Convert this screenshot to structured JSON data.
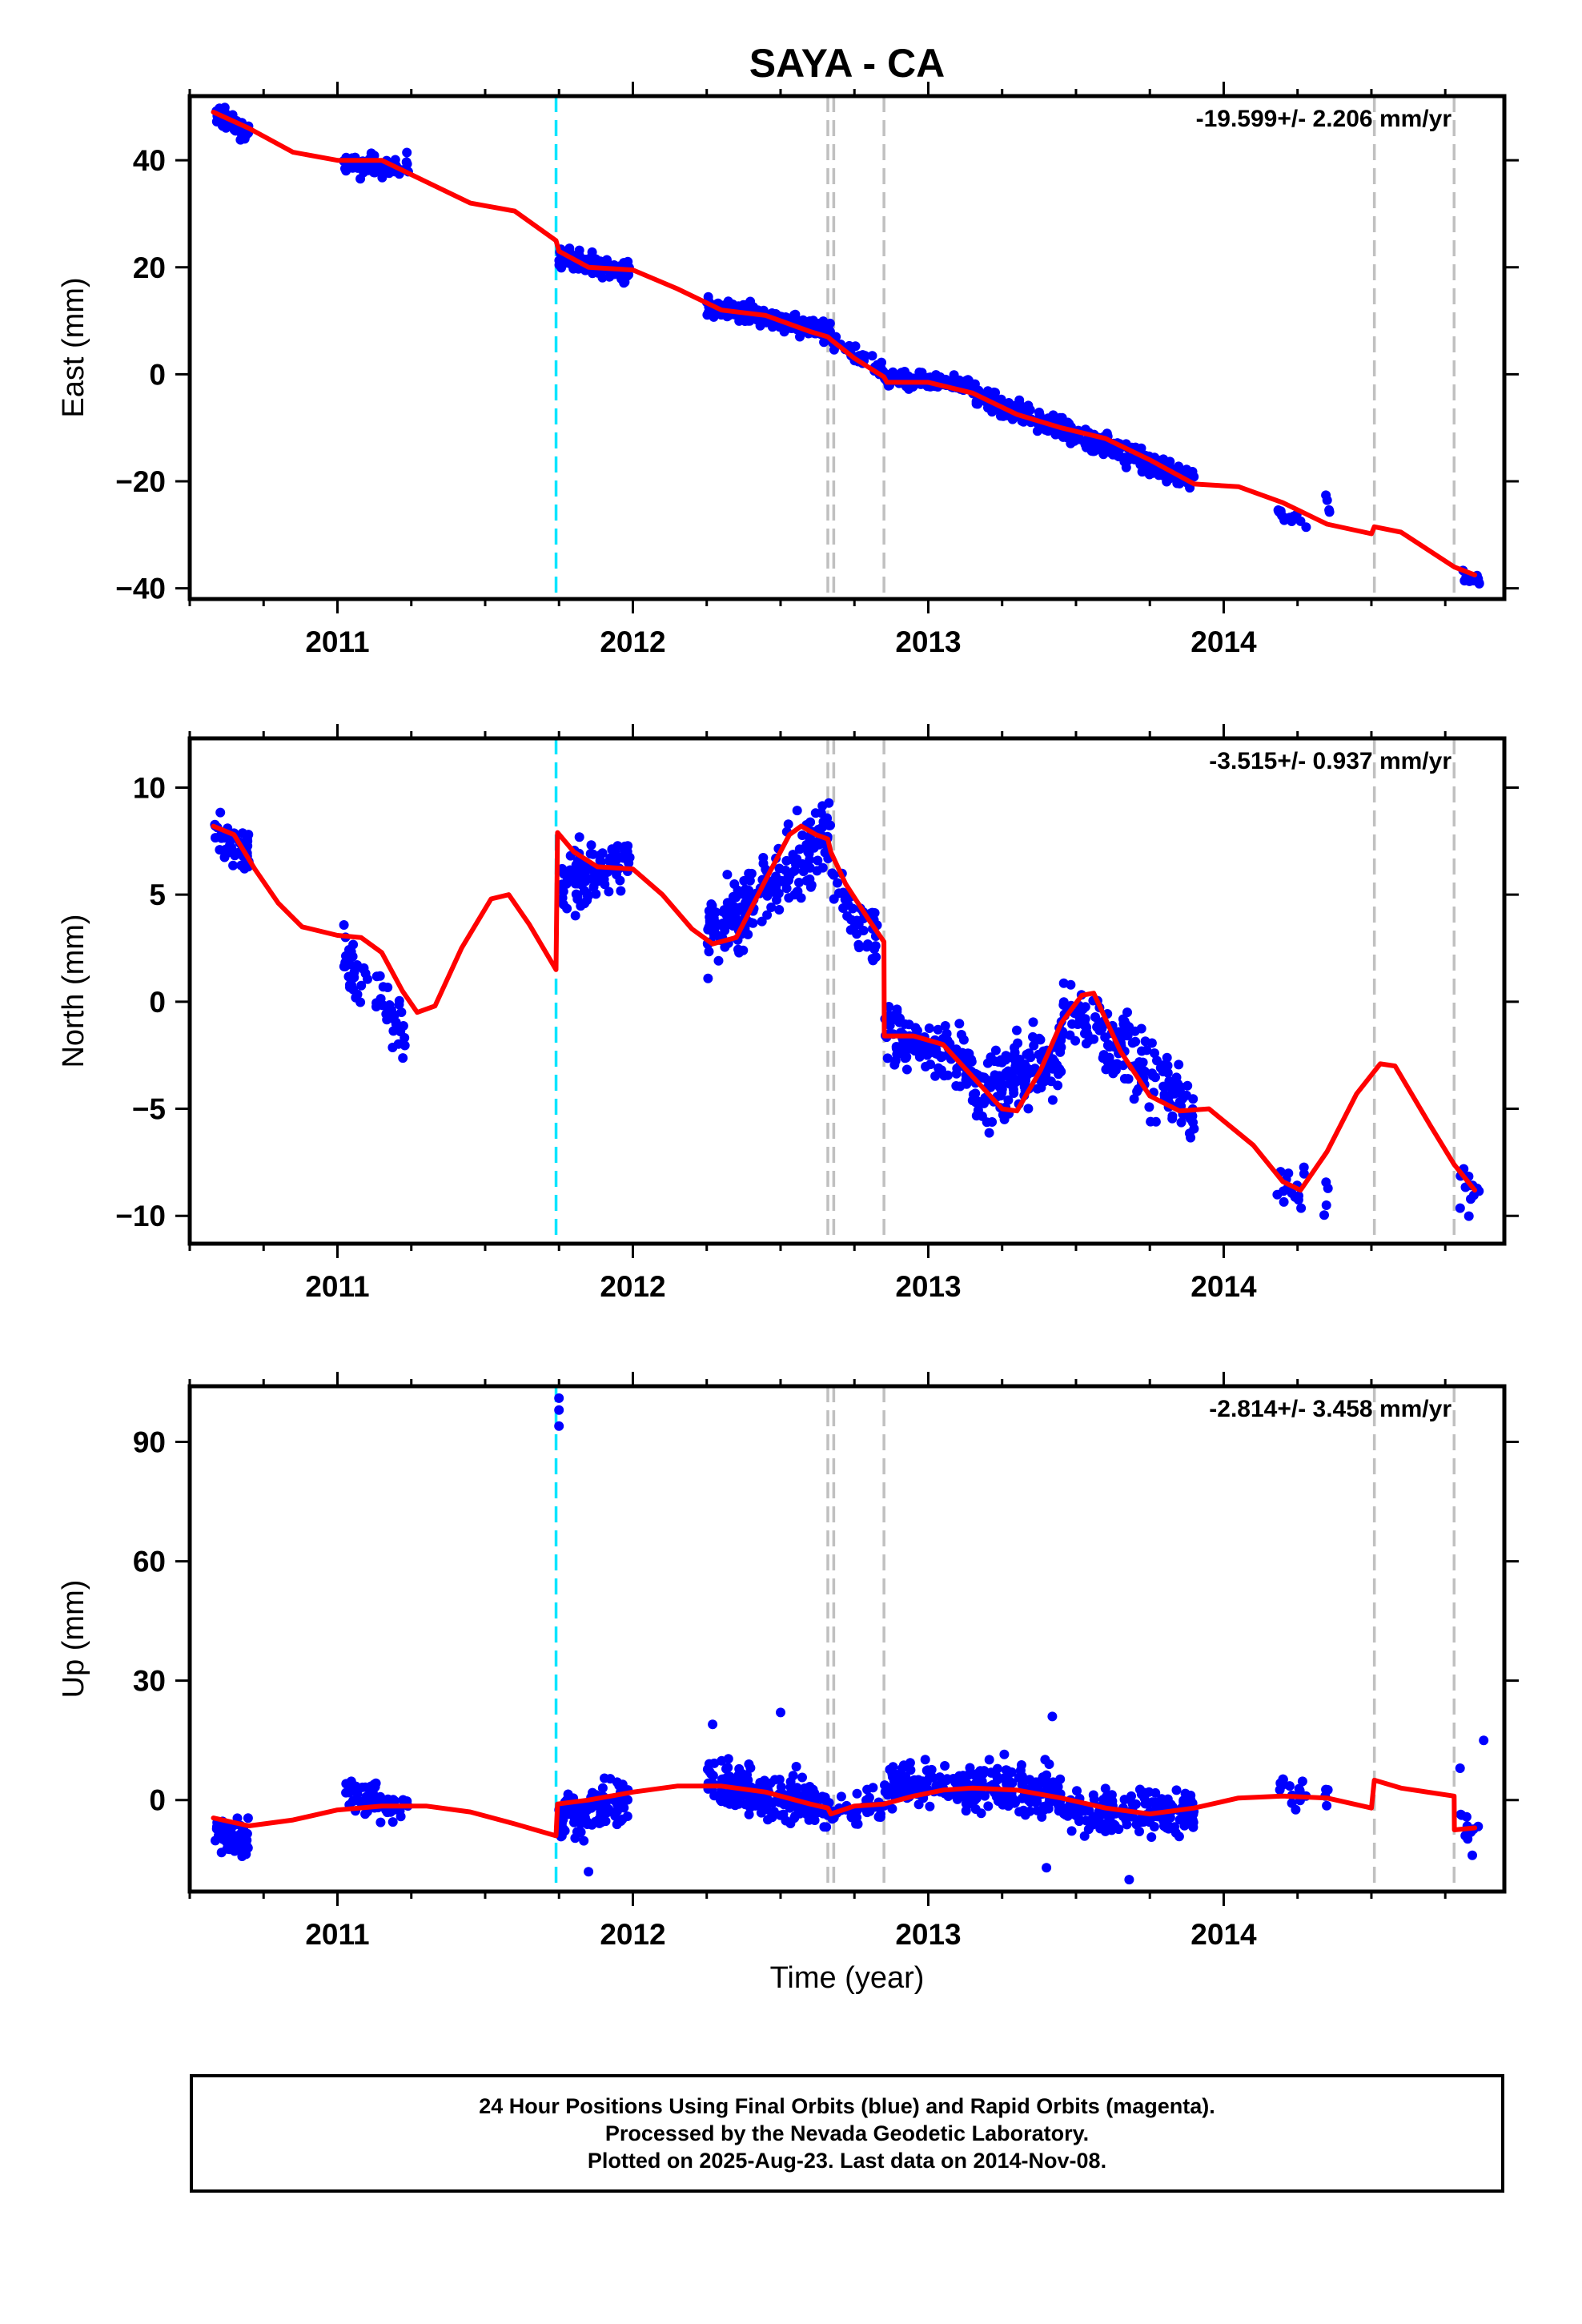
{
  "title": "SAYA - CA",
  "xlabel": "Time (year)",
  "footnote": [
    "24 Hour Positions Using Final Orbits (blue) and Rapid Orbits (magenta).",
    "Processed by the Nevada Geodetic Laboratory.",
    "Plotted on 2025-Aug-23. Last data on 2014-Nov-08."
  ],
  "colors": {
    "points": "#0000ff",
    "model": "#ff0000",
    "antenna_change": "#00e5ff",
    "equipment_change": "#c0c0c0"
  },
  "chart_data": [
    {
      "type": "scatter",
      "ylabel": "East (mm)",
      "rate": "-19.599+/- 2.206 mm/yr",
      "xlim": [
        2010.5,
        2014.95
      ],
      "ylim": [
        -42,
        52
      ],
      "yticks": [
        -40,
        -20,
        0,
        20,
        40
      ],
      "xticks": [
        2011,
        2012,
        2013,
        2014
      ],
      "vlines_cyan": [
        2011.74
      ],
      "vlines_gray": [
        2012.66,
        2012.68,
        2012.85,
        2014.51,
        2014.78
      ],
      "model": [
        [
          2010.58,
          49
        ],
        [
          2010.7,
          46
        ],
        [
          2010.85,
          41.5
        ],
        [
          2011.0,
          40
        ],
        [
          2011.15,
          40
        ],
        [
          2011.3,
          36
        ],
        [
          2011.45,
          32
        ],
        [
          2011.6,
          30.5
        ],
        [
          2011.74,
          25
        ],
        [
          2011.75,
          23
        ],
        [
          2011.85,
          20
        ],
        [
          2012.0,
          19.5
        ],
        [
          2012.15,
          16
        ],
        [
          2012.3,
          12
        ],
        [
          2012.45,
          11
        ],
        [
          2012.6,
          8
        ],
        [
          2012.66,
          7
        ],
        [
          2012.67,
          6.5
        ],
        [
          2012.75,
          3
        ],
        [
          2012.85,
          -0.5
        ],
        [
          2012.86,
          -1.5
        ],
        [
          2013.0,
          -1.5
        ],
        [
          2013.15,
          -3.5
        ],
        [
          2013.3,
          -7.5
        ],
        [
          2013.45,
          -10
        ],
        [
          2013.6,
          -12
        ],
        [
          2013.75,
          -16
        ],
        [
          2013.9,
          -20.5
        ],
        [
          2014.05,
          -21
        ],
        [
          2014.2,
          -24
        ],
        [
          2014.35,
          -28
        ],
        [
          2014.5,
          -29.8
        ],
        [
          2014.51,
          -28.5
        ],
        [
          2014.6,
          -29.5
        ],
        [
          2014.78,
          -36
        ],
        [
          2014.85,
          -37.5
        ]
      ],
      "clusters": [
        {
          "x": [
            2010.58,
            2010.7
          ],
          "y_start": 49,
          "y_end": 45,
          "spread": 1.6,
          "n": 55
        },
        {
          "x": [
            2011.02,
            2011.24
          ],
          "y_start": 39,
          "y_end": 39,
          "spread": 1.8,
          "n": 60
        },
        {
          "x": [
            2011.75,
            2011.99
          ],
          "y_start": 22,
          "y_end": 19,
          "spread": 1.6,
          "n": 110
        },
        {
          "x": [
            2012.25,
            2012.67
          ],
          "y_start": 13,
          "y_end": 8,
          "spread": 1.5,
          "n": 200
        },
        {
          "x": [
            2012.67,
            2012.85
          ],
          "y_start": 6,
          "y_end": 1,
          "spread": 1.2,
          "n": 40
        },
        {
          "x": [
            2012.85,
            2013.15
          ],
          "y_start": -1,
          "y_end": -2,
          "spread": 1.2,
          "n": 130
        },
        {
          "x": [
            2013.15,
            2013.45
          ],
          "y_start": -4,
          "y_end": -10,
          "spread": 1.6,
          "n": 150
        },
        {
          "x": [
            2013.45,
            2013.9
          ],
          "y_start": -10,
          "y_end": -20,
          "spread": 1.8,
          "n": 170
        },
        {
          "x": [
            2014.18,
            2014.28
          ],
          "y_start": -26,
          "y_end": -28,
          "spread": 1.6,
          "n": 15
        },
        {
          "x": [
            2014.34,
            2014.36
          ],
          "y_start": -22,
          "y_end": -25,
          "spread": 1.5,
          "n": 4
        },
        {
          "x": [
            2014.8,
            2014.87
          ],
          "y_start": -37,
          "y_end": -39,
          "spread": 1.2,
          "n": 12
        }
      ]
    },
    {
      "type": "scatter",
      "ylabel": "North (mm)",
      "rate": "-3.515+/- 0.937 mm/yr",
      "xlim": [
        2010.5,
        2014.95
      ],
      "ylim": [
        -11.3,
        12.3
      ],
      "yticks": [
        -10,
        -5,
        0,
        5,
        10
      ],
      "xticks": [
        2011,
        2012,
        2013,
        2014
      ],
      "vlines_cyan": [
        2011.74
      ],
      "vlines_gray": [
        2012.66,
        2012.68,
        2012.85,
        2014.51,
        2014.78
      ],
      "model": [
        [
          2010.58,
          8.2
        ],
        [
          2010.65,
          7.8
        ],
        [
          2010.72,
          6.2
        ],
        [
          2010.8,
          4.6
        ],
        [
          2010.88,
          3.5
        ],
        [
          2011.0,
          3.1
        ],
        [
          2011.08,
          3.0
        ],
        [
          2011.15,
          2.3
        ],
        [
          2011.22,
          0.5
        ],
        [
          2011.27,
          -0.5
        ],
        [
          2011.33,
          -0.2
        ],
        [
          2011.42,
          2.5
        ],
        [
          2011.52,
          4.8
        ],
        [
          2011.58,
          5.0
        ],
        [
          2011.65,
          3.6
        ],
        [
          2011.74,
          1.5
        ],
        [
          2011.745,
          7.9
        ],
        [
          2011.8,
          7.0
        ],
        [
          2011.88,
          6.3
        ],
        [
          2012.0,
          6.2
        ],
        [
          2012.1,
          5.0
        ],
        [
          2012.2,
          3.4
        ],
        [
          2012.27,
          2.7
        ],
        [
          2012.35,
          3.0
        ],
        [
          2012.45,
          5.7
        ],
        [
          2012.53,
          7.8
        ],
        [
          2012.57,
          8.2
        ],
        [
          2012.62,
          7.8
        ],
        [
          2012.66,
          7.6
        ],
        [
          2012.67,
          7.0
        ],
        [
          2012.72,
          5.5
        ],
        [
          2012.8,
          3.8
        ],
        [
          2012.85,
          2.8
        ],
        [
          2012.851,
          -1.6
        ],
        [
          2012.95,
          -1.6
        ],
        [
          2013.05,
          -2.0
        ],
        [
          2013.15,
          -3.5
        ],
        [
          2013.25,
          -5.0
        ],
        [
          2013.3,
          -5.1
        ],
        [
          2013.38,
          -3.2
        ],
        [
          2013.45,
          -1.0
        ],
        [
          2013.52,
          0.3
        ],
        [
          2013.56,
          0.4
        ],
        [
          2013.65,
          -2.3
        ],
        [
          2013.75,
          -4.4
        ],
        [
          2013.85,
          -5.1
        ],
        [
          2013.95,
          -5.0
        ],
        [
          2014.1,
          -6.7
        ],
        [
          2014.2,
          -8.4
        ],
        [
          2014.26,
          -8.8
        ],
        [
          2014.35,
          -7.0
        ],
        [
          2014.45,
          -4.3
        ],
        [
          2014.53,
          -2.9
        ],
        [
          2014.58,
          -3.0
        ],
        [
          2014.7,
          -5.8
        ],
        [
          2014.78,
          -7.6
        ],
        [
          2014.85,
          -8.8
        ]
      ],
      "clusters": [
        {
          "x": [
            2010.58,
            2010.7
          ],
          "y_start": 8,
          "y_end": 7,
          "spread": 0.9,
          "n": 55
        },
        {
          "x": [
            2011.02,
            2011.24
          ],
          "y_start": 2,
          "y_end": -1.5,
          "spread": 1.2,
          "n": 60
        },
        {
          "x": [
            2011.75,
            2011.99
          ],
          "y_start": 5.5,
          "y_end": 6.5,
          "spread": 1.1,
          "n": 110
        },
        {
          "x": [
            2012.25,
            2012.67
          ],
          "y_start": 3,
          "y_end": 8,
          "spread": 1.4,
          "n": 200
        },
        {
          "x": [
            2012.67,
            2012.85
          ],
          "y_start": 5.5,
          "y_end": 2.5,
          "spread": 1.2,
          "n": 40
        },
        {
          "x": [
            2012.85,
            2013.15
          ],
          "y_start": -1.5,
          "y_end": -3,
          "spread": 1.2,
          "n": 130
        },
        {
          "x": [
            2013.15,
            2013.45
          ],
          "y_start": -4.5,
          "y_end": -2.5,
          "spread": 1.3,
          "n": 150
        },
        {
          "x": [
            2013.45,
            2013.9
          ],
          "y_start": 0,
          "y_end": -5,
          "spread": 1.5,
          "n": 170
        },
        {
          "x": [
            2014.18,
            2014.28
          ],
          "y_start": -8.5,
          "y_end": -9,
          "spread": 1.2,
          "n": 15
        },
        {
          "x": [
            2014.34,
            2014.36
          ],
          "y_start": -9.5,
          "y_end": -9.5,
          "spread": 1.0,
          "n": 4
        },
        {
          "x": [
            2014.8,
            2014.87
          ],
          "y_start": -8.5,
          "y_end": -9,
          "spread": 1.0,
          "n": 12
        }
      ]
    },
    {
      "type": "scatter",
      "ylabel": "Up (mm)",
      "rate": "-2.814+/- 3.458 mm/yr",
      "xlim": [
        2010.5,
        2014.95
      ],
      "ylim": [
        -23,
        104
      ],
      "yticks": [
        0,
        30,
        60,
        90
      ],
      "xticks": [
        2011,
        2012,
        2013,
        2014
      ],
      "vlines_cyan": [
        2011.74
      ],
      "vlines_gray": [
        2012.66,
        2012.68,
        2012.85,
        2014.51,
        2014.78
      ],
      "model": [
        [
          2010.58,
          -4.5
        ],
        [
          2010.7,
          -6.5
        ],
        [
          2010.85,
          -5
        ],
        [
          2011.0,
          -2.5
        ],
        [
          2011.15,
          -1.5
        ],
        [
          2011.3,
          -1.5
        ],
        [
          2011.45,
          -3
        ],
        [
          2011.6,
          -6
        ],
        [
          2011.74,
          -9
        ],
        [
          2011.745,
          -1
        ],
        [
          2011.85,
          0
        ],
        [
          2012.0,
          2
        ],
        [
          2012.15,
          3.5
        ],
        [
          2012.3,
          3.5
        ],
        [
          2012.45,
          2
        ],
        [
          2012.6,
          -1
        ],
        [
          2012.66,
          -2
        ],
        [
          2012.67,
          -3.5
        ],
        [
          2012.75,
          -1.5
        ],
        [
          2012.85,
          -1
        ],
        [
          2012.95,
          1
        ],
        [
          2013.05,
          2.5
        ],
        [
          2013.15,
          3
        ],
        [
          2013.3,
          2.5
        ],
        [
          2013.45,
          0.5
        ],
        [
          2013.6,
          -2
        ],
        [
          2013.75,
          -3.5
        ],
        [
          2013.9,
          -2
        ],
        [
          2014.05,
          0.5
        ],
        [
          2014.2,
          1
        ],
        [
          2014.35,
          0.5
        ],
        [
          2014.5,
          -2
        ],
        [
          2014.51,
          5
        ],
        [
          2014.6,
          3
        ],
        [
          2014.78,
          1
        ],
        [
          2014.781,
          -7.5
        ],
        [
          2014.85,
          -7
        ]
      ],
      "clusters": [
        {
          "x": [
            2010.58,
            2010.7
          ],
          "y_start": -8,
          "y_end": -10,
          "spread": 4.0,
          "n": 55
        },
        {
          "x": [
            2011.02,
            2011.24
          ],
          "y_start": 2,
          "y_end": -2,
          "spread": 4.0,
          "n": 60
        },
        {
          "x": [
            2011.75,
            2011.99
          ],
          "y_start": -5,
          "y_end": 0,
          "spread": 4.5,
          "n": 110
        },
        {
          "x": [
            2012.25,
            2012.67
          ],
          "y_start": 5,
          "y_end": -2,
          "spread": 5.0,
          "n": 200
        },
        {
          "x": [
            2012.67,
            2012.85
          ],
          "y_start": -3,
          "y_end": -2,
          "spread": 4.0,
          "n": 40
        },
        {
          "x": [
            2012.85,
            2013.15
          ],
          "y_start": 4,
          "y_end": 3,
          "spread": 4.5,
          "n": 130
        },
        {
          "x": [
            2013.15,
            2013.45
          ],
          "y_start": 3,
          "y_end": 2,
          "spread": 5.0,
          "n": 150
        },
        {
          "x": [
            2013.45,
            2013.9
          ],
          "y_start": -3,
          "y_end": -3,
          "spread": 4.5,
          "n": 170
        },
        {
          "x": [
            2014.18,
            2014.28
          ],
          "y_start": 3,
          "y_end": 2,
          "spread": 4.0,
          "n": 15
        },
        {
          "x": [
            2014.34,
            2014.36
          ],
          "y_start": 3,
          "y_end": 2,
          "spread": 4.0,
          "n": 4
        },
        {
          "x": [
            2014.8,
            2014.87
          ],
          "y_start": -7,
          "y_end": -8,
          "spread": 4.0,
          "n": 12
        }
      ],
      "extra_points": [
        [
          2011.75,
          101
        ],
        [
          2011.75,
          98
        ],
        [
          2011.75,
          94
        ],
        [
          2014.88,
          15
        ],
        [
          2014.8,
          8
        ],
        [
          2013.42,
          21
        ],
        [
          2012.5,
          22
        ],
        [
          2012.27,
          19
        ],
        [
          2013.4,
          -17
        ],
        [
          2013.68,
          -20
        ],
        [
          2011.85,
          -18
        ]
      ]
    }
  ]
}
